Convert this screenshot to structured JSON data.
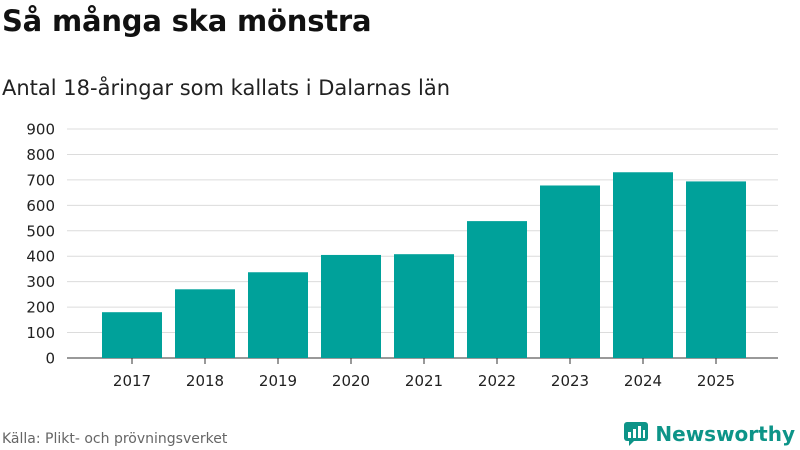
{
  "title": "Så många ska mönstra",
  "subtitle": "Antal 18-åringar som kallats i Dalarnas län",
  "source": "Källa: Plikt- och prövningsverket",
  "brand": {
    "name": "Newsworthy",
    "icon": "newsworthy-logo-icon"
  },
  "colors": {
    "bar": "#00a19a",
    "grid": "#dcdcdc",
    "brand": "#0d9488"
  },
  "chart_data": {
    "type": "bar",
    "title": "Så många ska mönstra",
    "subtitle": "Antal 18-åringar som kallats i Dalarnas län",
    "xlabel": "",
    "ylabel": "",
    "categories": [
      "2017",
      "2018",
      "2019",
      "2020",
      "2021",
      "2022",
      "2023",
      "2024",
      "2025"
    ],
    "values": [
      180,
      270,
      337,
      405,
      408,
      538,
      678,
      730,
      694
    ],
    "ylim": [
      0,
      900
    ],
    "yticks": [
      0,
      100,
      200,
      300,
      400,
      500,
      600,
      700,
      800,
      900
    ],
    "grid": true,
    "legend": "none"
  }
}
